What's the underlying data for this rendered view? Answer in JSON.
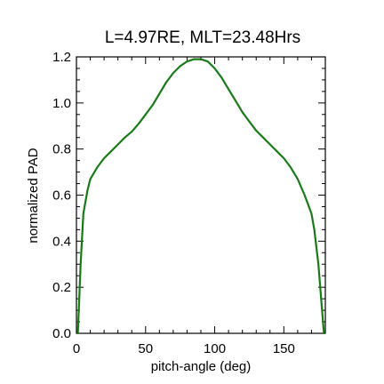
{
  "chart_data": {
    "type": "line",
    "title": "L=4.97RE, MLT=23.48Hrs",
    "xlabel": "pitch-angle (deg)",
    "ylabel": "normalized PAD",
    "xlim": [
      0,
      180
    ],
    "ylim": [
      0,
      1.2
    ],
    "x_ticks": [
      0,
      50,
      100,
      150
    ],
    "x_tick_labels": [
      "0",
      "50",
      "100",
      "150"
    ],
    "y_ticks": [
      0,
      0.2,
      0.4,
      0.6,
      0.8,
      1.0,
      1.2
    ],
    "y_tick_labels": [
      "0.0",
      "0.2",
      "0.4",
      "0.6",
      "0.8",
      "1.0",
      "1.2"
    ],
    "grid": false,
    "series": [
      {
        "color": "#1a7a1a",
        "x": [
          1,
          3,
          5,
          8,
          10,
          15,
          20,
          25,
          30,
          35,
          40,
          45,
          50,
          55,
          60,
          65,
          70,
          75,
          80,
          85,
          90,
          95,
          100,
          105,
          110,
          115,
          120,
          125,
          130,
          135,
          140,
          145,
          150,
          155,
          160,
          165,
          170,
          172,
          175,
          177,
          179
        ],
        "y": [
          0.0,
          0.3,
          0.52,
          0.62,
          0.67,
          0.72,
          0.76,
          0.79,
          0.82,
          0.85,
          0.875,
          0.91,
          0.95,
          0.99,
          1.04,
          1.09,
          1.13,
          1.16,
          1.18,
          1.19,
          1.19,
          1.18,
          1.15,
          1.11,
          1.06,
          1.01,
          0.96,
          0.92,
          0.88,
          0.85,
          0.82,
          0.79,
          0.76,
          0.72,
          0.67,
          0.6,
          0.52,
          0.45,
          0.3,
          0.15,
          0.0
        ]
      }
    ]
  }
}
